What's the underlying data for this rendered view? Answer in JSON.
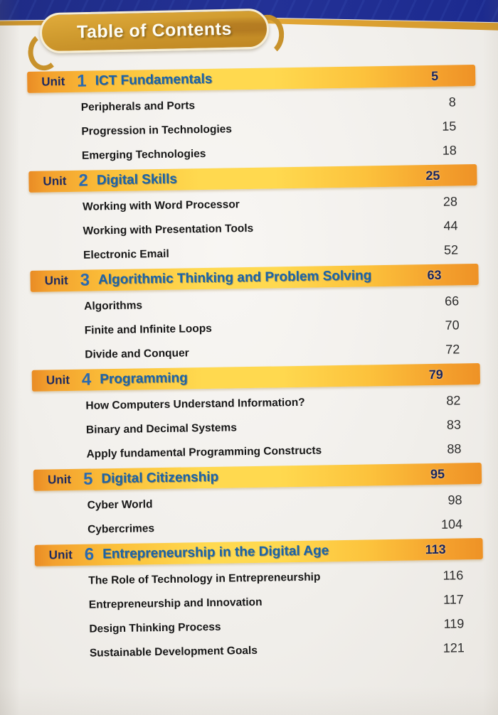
{
  "page": {
    "banner_title": "Table of Contents"
  },
  "colors": {
    "cover_navy": "#22309b",
    "gold_trim": "#d2982d",
    "banner_gold": "#cf9a2e",
    "bar_yellow": "#ffd94f",
    "bar_orange": "#f3a02d",
    "unit_label_navy": "#1e2a5f",
    "unit_title_blue": "#1a63a8",
    "paper": "#f1efeb"
  },
  "toc": {
    "unit_label": "Unit",
    "units": [
      {
        "number": "1",
        "title": "ICT Fundamentals",
        "page": "5",
        "topics": [
          {
            "title": "Peripherals and Ports",
            "page": "8"
          },
          {
            "title": "Progression in Technologies",
            "page": "15"
          },
          {
            "title": "Emerging Technologies",
            "page": "18"
          }
        ]
      },
      {
        "number": "2",
        "title": "Digital Skills",
        "page": "25",
        "topics": [
          {
            "title": "Working with Word Processor",
            "page": "28"
          },
          {
            "title": "Working with Presentation Tools",
            "page": "44"
          },
          {
            "title": "Electronic Email",
            "page": "52"
          }
        ]
      },
      {
        "number": "3",
        "title": "Algorithmic Thinking and Problem Solving",
        "page": "63",
        "topics": [
          {
            "title": "Algorithms",
            "page": "66"
          },
          {
            "title": "Finite and Infinite Loops",
            "page": "70"
          },
          {
            "title": "Divide and Conquer",
            "page": "72"
          }
        ]
      },
      {
        "number": "4",
        "title": "Programming",
        "page": "79",
        "topics": [
          {
            "title": "How Computers Understand Information?",
            "page": "82"
          },
          {
            "title": "Binary and Decimal Systems",
            "page": "83"
          },
          {
            "title": "Apply fundamental Programming Constructs",
            "page": "88"
          }
        ]
      },
      {
        "number": "5",
        "title": "Digital Citizenship",
        "page": "95",
        "topics": [
          {
            "title": "Cyber World",
            "page": "98"
          },
          {
            "title": "Cybercrimes",
            "page": "104"
          }
        ]
      },
      {
        "number": "6",
        "title": "Entrepreneurship in the Digital Age",
        "page": "113",
        "topics": [
          {
            "title": "The Role of Technology in Entrepreneurship",
            "page": "116"
          },
          {
            "title": "Entrepreneurship and Innovation",
            "page": "117"
          },
          {
            "title": "Design Thinking Process",
            "page": "119"
          },
          {
            "title": "Sustainable Development Goals",
            "page": "121"
          }
        ]
      }
    ]
  }
}
